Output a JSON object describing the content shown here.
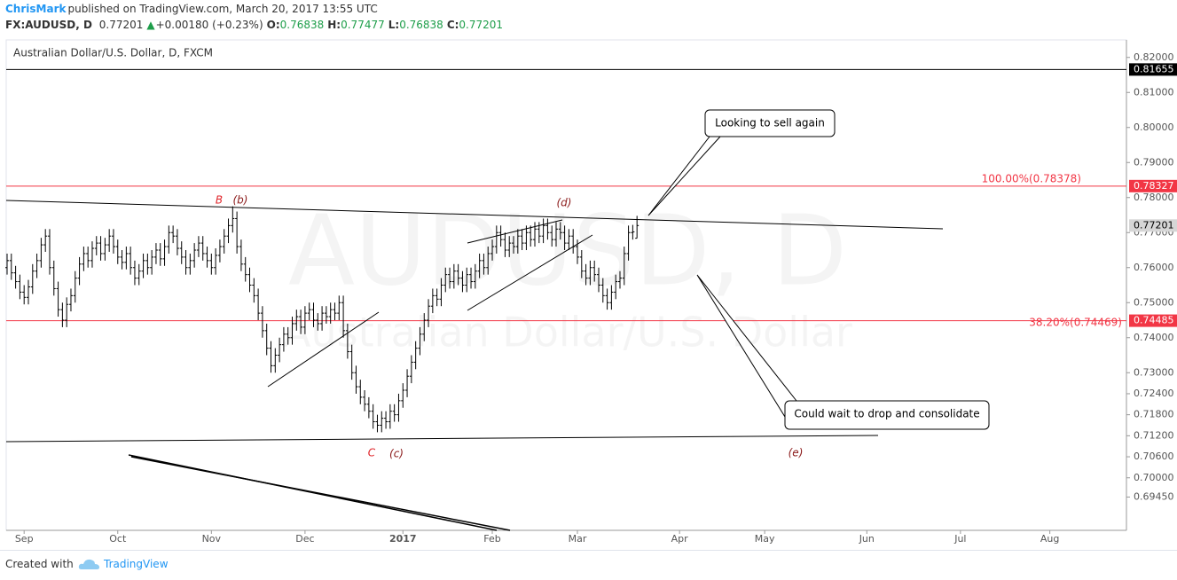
{
  "header": {
    "author": "ChrisMark",
    "published": "published on TradingView.com, March 20, 2017 13:55 UTC",
    "symbol": "FX:AUDUSD, D",
    "last": "0.77201",
    "arrow": "▲",
    "change": "+0.00180 (+0.23%)",
    "ohlc": [
      {
        "label": "O:",
        "value": "0.76838"
      },
      {
        "label": "H:",
        "value": "0.77477"
      },
      {
        "label": "L:",
        "value": "0.76838"
      },
      {
        "label": "C:",
        "value": "0.77201"
      }
    ]
  },
  "chart_data": {
    "type": "ohlc",
    "title": "Australian Dollar/U.S. Dollar, D, FXCM",
    "watermark": "AUDUSD, D",
    "watermark_sub": "Australian Dollar/U.S. Dollar",
    "color": "#000000",
    "x": [
      0,
      1,
      2,
      3,
      4,
      5,
      6,
      7,
      8,
      9,
      10,
      11,
      12,
      13,
      14,
      15,
      16,
      17,
      18,
      19,
      20,
      21,
      22,
      23,
      24,
      25,
      26,
      27,
      28,
      29,
      30,
      31,
      32,
      33,
      34,
      35,
      36,
      37,
      38,
      39,
      40,
      41,
      42,
      43,
      44,
      45,
      46,
      47,
      48,
      49,
      50,
      51,
      52,
      53,
      54,
      55,
      56,
      57,
      58,
      59,
      60,
      61,
      62,
      63,
      64,
      65,
      66,
      67,
      68,
      69,
      70,
      71,
      72,
      73,
      74,
      75,
      76,
      77,
      78,
      79,
      80,
      81,
      82,
      83,
      84,
      85,
      86,
      87,
      88,
      89,
      90,
      91,
      92,
      93,
      94,
      95,
      96,
      97,
      98,
      99,
      100,
      101,
      102,
      103,
      104,
      105,
      106,
      107,
      108,
      109,
      110,
      111,
      112,
      113,
      114,
      115,
      116,
      117,
      118,
      119,
      120,
      121,
      122,
      123,
      124,
      125,
      126,
      127,
      128,
      129,
      130,
      131,
      132,
      133,
      134,
      135,
      136,
      137,
      138,
      139,
      140,
      141,
      142,
      143,
      144,
      145,
      146,
      147,
      148
    ],
    "ohlc": [
      [
        0.76,
        0.764,
        0.758,
        0.762
      ],
      [
        0.762,
        0.764,
        0.7565,
        0.7585
      ],
      [
        0.7585,
        0.7605,
        0.754,
        0.756
      ],
      [
        0.756,
        0.758,
        0.751,
        0.753
      ],
      [
        0.753,
        0.755,
        0.7495,
        0.7515
      ],
      [
        0.7515,
        0.7565,
        0.7495,
        0.7545
      ],
      [
        0.7545,
        0.761,
        0.7525,
        0.759
      ],
      [
        0.759,
        0.764,
        0.757,
        0.762
      ],
      [
        0.762,
        0.7685,
        0.76,
        0.7665
      ],
      [
        0.7665,
        0.771,
        0.7645,
        0.769
      ],
      [
        0.769,
        0.771,
        0.758,
        0.76
      ],
      [
        0.76,
        0.762,
        0.752,
        0.754
      ],
      [
        0.754,
        0.756,
        0.746,
        0.748
      ],
      [
        0.748,
        0.75,
        0.743,
        0.745
      ],
      [
        0.745,
        0.7515,
        0.743,
        0.7495
      ],
      [
        0.7495,
        0.754,
        0.7475,
        0.752
      ],
      [
        0.752,
        0.759,
        0.75,
        0.757
      ],
      [
        0.757,
        0.763,
        0.755,
        0.761
      ],
      [
        0.761,
        0.766,
        0.759,
        0.764
      ],
      [
        0.764,
        0.766,
        0.76,
        0.762
      ],
      [
        0.762,
        0.7675,
        0.76,
        0.7655
      ],
      [
        0.7655,
        0.769,
        0.7635,
        0.767
      ],
      [
        0.767,
        0.769,
        0.762,
        0.764
      ],
      [
        0.764,
        0.7685,
        0.762,
        0.7665
      ],
      [
        0.7665,
        0.771,
        0.7645,
        0.769
      ],
      [
        0.769,
        0.771,
        0.764,
        0.766
      ],
      [
        0.766,
        0.768,
        0.761,
        0.763
      ],
      [
        0.763,
        0.765,
        0.7595,
        0.7615
      ],
      [
        0.7615,
        0.766,
        0.7595,
        0.764
      ],
      [
        0.764,
        0.766,
        0.758,
        0.76
      ],
      [
        0.76,
        0.762,
        0.755,
        0.757
      ],
      [
        0.757,
        0.761,
        0.755,
        0.759
      ],
      [
        0.759,
        0.764,
        0.757,
        0.762
      ],
      [
        0.762,
        0.764,
        0.758,
        0.76
      ],
      [
        0.76,
        0.765,
        0.758,
        0.763
      ],
      [
        0.763,
        0.767,
        0.761,
        0.765
      ],
      [
        0.765,
        0.767,
        0.7605,
        0.7625
      ],
      [
        0.7625,
        0.768,
        0.7605,
        0.766
      ],
      [
        0.766,
        0.772,
        0.764,
        0.77
      ],
      [
        0.77,
        0.772,
        0.767,
        0.769
      ],
      [
        0.769,
        0.771,
        0.7635,
        0.7655
      ],
      [
        0.7655,
        0.7675,
        0.761,
        0.763
      ],
      [
        0.763,
        0.765,
        0.758,
        0.76
      ],
      [
        0.76,
        0.764,
        0.758,
        0.762
      ],
      [
        0.762,
        0.767,
        0.76,
        0.765
      ],
      [
        0.765,
        0.769,
        0.763,
        0.767
      ],
      [
        0.767,
        0.769,
        0.762,
        0.764
      ],
      [
        0.764,
        0.766,
        0.76,
        0.762
      ],
      [
        0.762,
        0.764,
        0.758,
        0.76
      ],
      [
        0.76,
        0.7655,
        0.758,
        0.7635
      ],
      [
        0.7635,
        0.768,
        0.7615,
        0.766
      ],
      [
        0.766,
        0.771,
        0.764,
        0.769
      ],
      [
        0.769,
        0.774,
        0.767,
        0.772
      ],
      [
        0.772,
        0.7775,
        0.77,
        0.774
      ],
      [
        0.774,
        0.776,
        0.764,
        0.766
      ],
      [
        0.766,
        0.768,
        0.759,
        0.761
      ],
      [
        0.761,
        0.763,
        0.756,
        0.758
      ],
      [
        0.758,
        0.76,
        0.753,
        0.755
      ],
      [
        0.755,
        0.757,
        0.75,
        0.752
      ],
      [
        0.752,
        0.754,
        0.745,
        0.747
      ],
      [
        0.747,
        0.749,
        0.74,
        0.742
      ],
      [
        0.742,
        0.744,
        0.735,
        0.737
      ],
      [
        0.737,
        0.739,
        0.73,
        0.732
      ],
      [
        0.732,
        0.737,
        0.73,
        0.735
      ],
      [
        0.735,
        0.74,
        0.733,
        0.738
      ],
      [
        0.738,
        0.743,
        0.736,
        0.741
      ],
      [
        0.741,
        0.743,
        0.738,
        0.74
      ],
      [
        0.74,
        0.746,
        0.738,
        0.744
      ],
      [
        0.744,
        0.748,
        0.742,
        0.746
      ],
      [
        0.746,
        0.748,
        0.741,
        0.743
      ],
      [
        0.743,
        0.749,
        0.741,
        0.747
      ],
      [
        0.747,
        0.75,
        0.745,
        0.748
      ],
      [
        0.748,
        0.75,
        0.743,
        0.745
      ],
      [
        0.745,
        0.747,
        0.742,
        0.744
      ],
      [
        0.744,
        0.749,
        0.742,
        0.747
      ],
      [
        0.747,
        0.749,
        0.744,
        0.746
      ],
      [
        0.746,
        0.75,
        0.744,
        0.748
      ],
      [
        0.748,
        0.75,
        0.745,
        0.747
      ],
      [
        0.747,
        0.752,
        0.745,
        0.75
      ],
      [
        0.75,
        0.752,
        0.74,
        0.742
      ],
      [
        0.742,
        0.744,
        0.734,
        0.736
      ],
      [
        0.736,
        0.738,
        0.728,
        0.73
      ],
      [
        0.73,
        0.732,
        0.724,
        0.726
      ],
      [
        0.726,
        0.728,
        0.721,
        0.723
      ],
      [
        0.723,
        0.725,
        0.719,
        0.721
      ],
      [
        0.721,
        0.723,
        0.717,
        0.719
      ],
      [
        0.719,
        0.721,
        0.714,
        0.716
      ],
      [
        0.716,
        0.718,
        0.713,
        0.715
      ],
      [
        0.715,
        0.719,
        0.713,
        0.717
      ],
      [
        0.717,
        0.719,
        0.714,
        0.716
      ],
      [
        0.716,
        0.721,
        0.714,
        0.719
      ],
      [
        0.719,
        0.721,
        0.716,
        0.718
      ],
      [
        0.718,
        0.724,
        0.716,
        0.722
      ],
      [
        0.722,
        0.727,
        0.72,
        0.725
      ],
      [
        0.725,
        0.731,
        0.723,
        0.729
      ],
      [
        0.729,
        0.735,
        0.727,
        0.733
      ],
      [
        0.733,
        0.739,
        0.731,
        0.737
      ],
      [
        0.737,
        0.743,
        0.735,
        0.741
      ],
      [
        0.741,
        0.747,
        0.739,
        0.745
      ],
      [
        0.745,
        0.751,
        0.743,
        0.749
      ],
      [
        0.749,
        0.754,
        0.747,
        0.752
      ],
      [
        0.752,
        0.754,
        0.749,
        0.751
      ],
      [
        0.751,
        0.757,
        0.749,
        0.755
      ],
      [
        0.755,
        0.76,
        0.753,
        0.758
      ],
      [
        0.758,
        0.76,
        0.754,
        0.756
      ],
      [
        0.756,
        0.761,
        0.754,
        0.759
      ],
      [
        0.759,
        0.761,
        0.755,
        0.757
      ],
      [
        0.757,
        0.759,
        0.753,
        0.755
      ],
      [
        0.755,
        0.76,
        0.753,
        0.758
      ],
      [
        0.758,
        0.76,
        0.754,
        0.756
      ],
      [
        0.756,
        0.761,
        0.754,
        0.759
      ],
      [
        0.759,
        0.764,
        0.757,
        0.762
      ],
      [
        0.762,
        0.764,
        0.758,
        0.76
      ],
      [
        0.76,
        0.766,
        0.758,
        0.764
      ],
      [
        0.764,
        0.768,
        0.762,
        0.766
      ],
      [
        0.766,
        0.772,
        0.764,
        0.77
      ],
      [
        0.77,
        0.772,
        0.766,
        0.768
      ],
      [
        0.768,
        0.77,
        0.763,
        0.765
      ],
      [
        0.765,
        0.769,
        0.763,
        0.767
      ],
      [
        0.767,
        0.769,
        0.764,
        0.766
      ],
      [
        0.766,
        0.771,
        0.764,
        0.769
      ],
      [
        0.769,
        0.771,
        0.765,
        0.767
      ],
      [
        0.767,
        0.772,
        0.765,
        0.77
      ],
      [
        0.77,
        0.772,
        0.766,
        0.768
      ],
      [
        0.768,
        0.773,
        0.766,
        0.771
      ],
      [
        0.771,
        0.773,
        0.767,
        0.769
      ],
      [
        0.769,
        0.774,
        0.767,
        0.772
      ],
      [
        0.772,
        0.774,
        0.768,
        0.77
      ],
      [
        0.77,
        0.772,
        0.766,
        0.768
      ],
      [
        0.768,
        0.773,
        0.766,
        0.771
      ],
      [
        0.771,
        0.773,
        0.768,
        0.77
      ],
      [
        0.77,
        0.772,
        0.765,
        0.767
      ],
      [
        0.767,
        0.771,
        0.765,
        0.769
      ],
      [
        0.769,
        0.771,
        0.764,
        0.766
      ],
      [
        0.766,
        0.768,
        0.761,
        0.763
      ],
      [
        0.763,
        0.765,
        0.757,
        0.759
      ],
      [
        0.759,
        0.761,
        0.755,
        0.757
      ],
      [
        0.757,
        0.762,
        0.755,
        0.76
      ],
      [
        0.76,
        0.762,
        0.756,
        0.758
      ],
      [
        0.758,
        0.76,
        0.753,
        0.755
      ],
      [
        0.755,
        0.757,
        0.75,
        0.752
      ],
      [
        0.752,
        0.754,
        0.748,
        0.75
      ],
      [
        0.75,
        0.755,
        0.748,
        0.753
      ],
      [
        0.753,
        0.758,
        0.751,
        0.756
      ],
      [
        0.756,
        0.759,
        0.754,
        0.757
      ],
      [
        0.757,
        0.766,
        0.755,
        0.764
      ],
      [
        0.764,
        0.772,
        0.762,
        0.77
      ],
      [
        0.77,
        0.7722,
        0.768,
        0.7702
      ],
      [
        0.76838,
        0.77477,
        0.76838,
        0.77201
      ]
    ],
    "xlim": [
      0,
      263
    ],
    "xticks": [
      {
        "value": 4,
        "label": "Sep"
      },
      {
        "value": 26,
        "label": "Oct"
      },
      {
        "value": 48,
        "label": "Nov"
      },
      {
        "value": 70,
        "label": "Dec"
      },
      {
        "value": 93,
        "label": "2017"
      },
      {
        "value": 114,
        "label": "Feb"
      },
      {
        "value": 134,
        "label": "Mar"
      },
      {
        "value": 158,
        "label": "Apr"
      },
      {
        "value": 178,
        "label": "May"
      },
      {
        "value": 202,
        "label": "Jun"
      },
      {
        "value": 224,
        "label": "Jul"
      },
      {
        "value": 245,
        "label": "Aug"
      }
    ],
    "ylim": [
      0.685,
      0.825
    ],
    "yticks": [
      {
        "value": 0.82,
        "label": "0.82000"
      },
      {
        "value": 0.81,
        "label": "0.81000"
      },
      {
        "value": 0.8,
        "label": "0.80000"
      },
      {
        "value": 0.79,
        "label": "0.79000"
      },
      {
        "value": 0.78,
        "label": "0.78000"
      },
      {
        "value": 0.77,
        "label": "0.77000"
      },
      {
        "value": 0.76,
        "label": "0.76000"
      },
      {
        "value": 0.75,
        "label": "0.75000"
      },
      {
        "value": 0.74,
        "label": "0.74000"
      },
      {
        "value": 0.73,
        "label": "0.73000"
      },
      {
        "value": 0.724,
        "label": "0.72400"
      },
      {
        "value": 0.718,
        "label": "0.71800"
      },
      {
        "value": 0.712,
        "label": "0.71200"
      },
      {
        "value": 0.706,
        "label": "0.70600"
      },
      {
        "value": 0.7,
        "label": "0.70000"
      },
      {
        "value": 0.6945,
        "label": "0.69450"
      }
    ],
    "price_labels": [
      {
        "value": 0.81655,
        "color": "#000000",
        "text_color": "#ffffff",
        "line": true
      },
      {
        "value": 0.78327,
        "color": "#f23645",
        "text_color": "#ffffff",
        "line": true
      },
      {
        "value": 0.77201,
        "color": "#d6d6d6",
        "text_color": "#000000",
        "line": false
      },
      {
        "value": 0.74485,
        "color": "#f23645",
        "text_color": "#ffffff",
        "line": true
      }
    ],
    "fib_labels": [
      "100.00%(0.78378)",
      "38.20%(0.74469)"
    ],
    "wave_labels": [
      "B",
      "(b)",
      "(d)",
      "C",
      "(c)",
      "(e)"
    ],
    "callouts": [
      "Looking to sell again",
      "Could wait to drop and consolidate"
    ]
  },
  "footer": {
    "created": "Created with",
    "brand": "TradingView"
  }
}
